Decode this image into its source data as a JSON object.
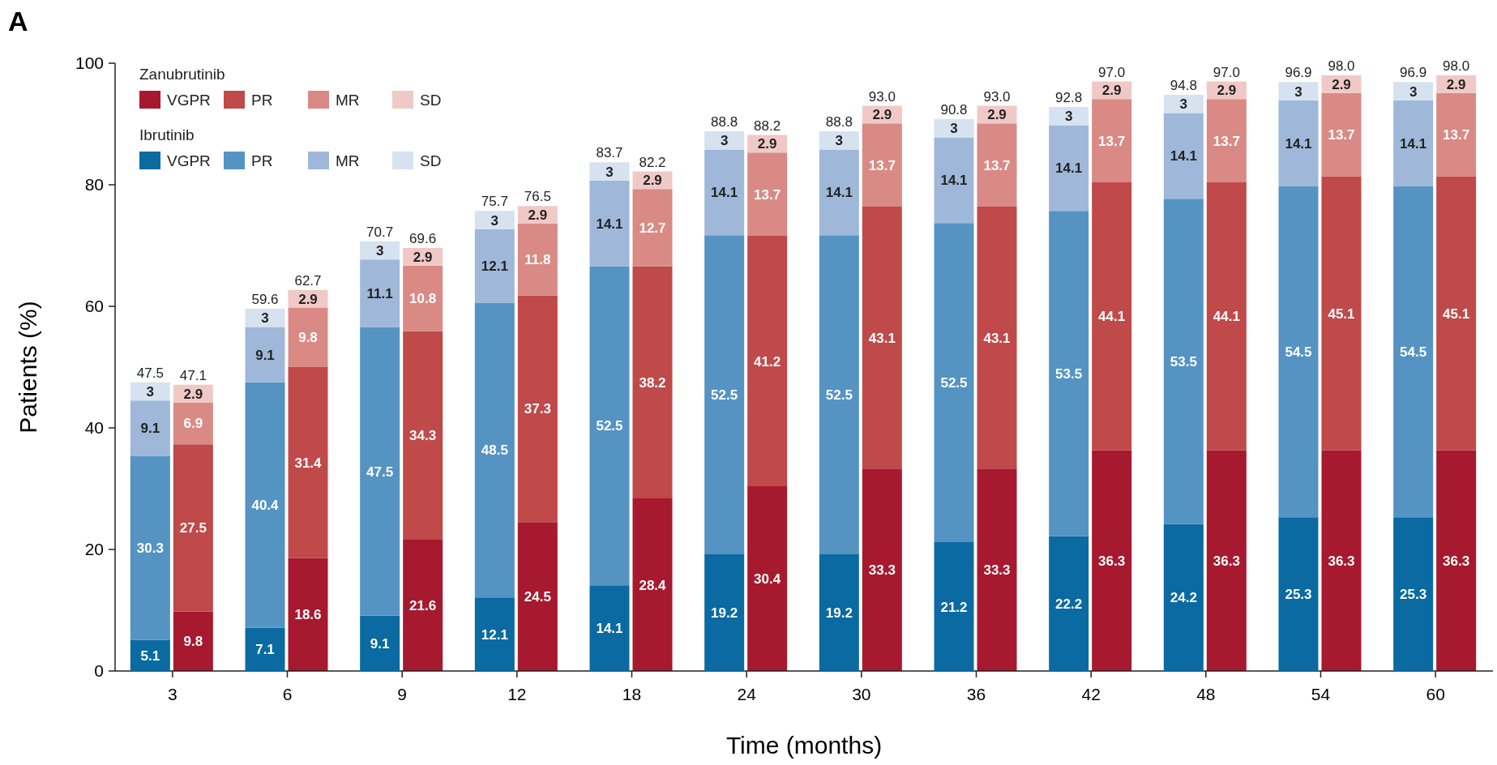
{
  "chart_data": [
    {
      "type": "bar",
      "title": "A",
      "xlabel": "Time (months)",
      "ylabel": "Patients (%)",
      "legend_title": "Zanubrutinib",
      "stacked": true,
      "data_labels": true,
      "legend": "top left",
      "tick_labels": "x",
      "categories": [
        "3",
        "6",
        "9",
        "12",
        "18",
        "24",
        "30",
        "36",
        "42",
        "48",
        "54",
        "60"
      ],
      "ylim": [
        0,
        100
      ],
      "series": [
        {
          "name": "VGPR",
          "color": "#a6192e",
          "values": [
            9.8,
            18.6,
            21.6,
            24.5,
            28.4,
            30.4,
            33.3,
            33.3,
            36.3,
            36.3,
            36.3,
            36.3
          ]
        },
        {
          "name": "PR",
          "color": "#c0494a",
          "values": [
            27.5,
            31.4,
            34.3,
            37.3,
            38.2,
            41.2,
            43.1,
            43.1,
            44.1,
            44.1,
            45.1,
            45.1
          ]
        },
        {
          "name": "MR",
          "color": "#d98a85",
          "values": [
            6.9,
            9.8,
            10.8,
            11.8,
            12.7,
            13.7,
            13.7,
            13.7,
            13.7,
            13.7,
            13.7,
            13.7
          ]
        },
        {
          "name": "SD",
          "color": "#f0c9c6",
          "values": [
            2.9,
            2.9,
            2.9,
            2.9,
            2.9,
            2.9,
            2.9,
            2.9,
            2.9,
            2.9,
            2.9,
            2.9
          ]
        }
      ],
      "totals": [
        "47.1",
        "62.7",
        "69.6",
        "76.5",
        "82.2",
        "88.2",
        "93.0",
        "93.0",
        "97.0",
        "97.0",
        "98.0",
        "98.0"
      ]
    },
    {
      "type": "bar",
      "legend_title": "Ibrutinib",
      "stacked": true,
      "data_labels": true,
      "legend": "top left",
      "tick_labels": "y",
      "categories": [
        "3",
        "6",
        "9",
        "12",
        "18",
        "24",
        "30",
        "36",
        "42",
        "48",
        "54",
        "60"
      ],
      "ylim": [
        0,
        100
      ],
      "yticks": [
        0,
        20,
        40,
        60,
        80,
        100
      ],
      "series": [
        {
          "name": "VGPR",
          "color": "#0a6aa1",
          "values": [
            5.1,
            7.1,
            9.1,
            12.1,
            14.1,
            19.2,
            19.2,
            21.2,
            22.2,
            24.2,
            25.3,
            25.3
          ]
        },
        {
          "name": "PR",
          "color": "#5593c3",
          "values": [
            30.3,
            40.4,
            47.5,
            48.5,
            52.5,
            52.5,
            52.5,
            52.5,
            53.5,
            53.5,
            54.5,
            54.5
          ]
        },
        {
          "name": "MR",
          "color": "#9fb8d9",
          "values": [
            9.1,
            9.1,
            11.1,
            12.1,
            14.1,
            14.1,
            14.1,
            14.1,
            14.1,
            14.1,
            14.1,
            14.1
          ]
        },
        {
          "name": "SD",
          "color": "#d6e2f0",
          "values": [
            3,
            3,
            3,
            3,
            3,
            3,
            3,
            3,
            3,
            3,
            3,
            3
          ]
        }
      ],
      "totals": [
        "47.5",
        "59.6",
        "70.7",
        "75.7",
        "83.7",
        "88.8",
        "88.8",
        "90.8",
        "92.8",
        "94.8",
        "96.9",
        "96.9"
      ]
    }
  ]
}
